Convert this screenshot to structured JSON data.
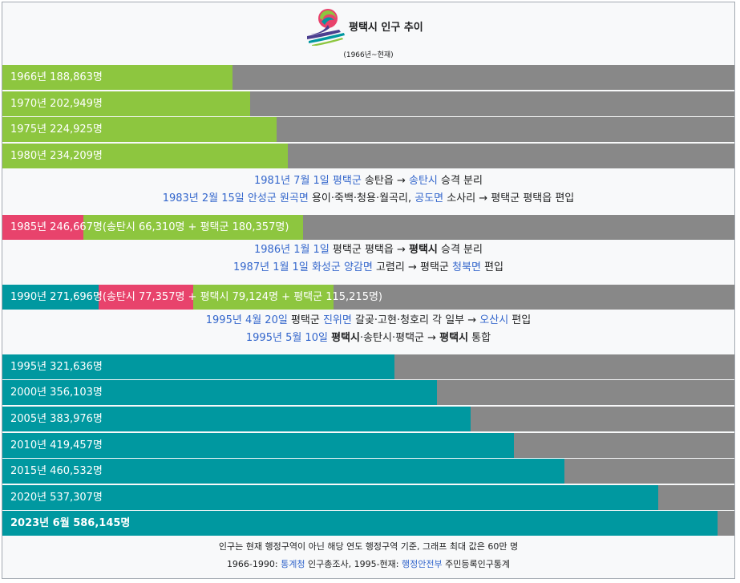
{
  "header": {
    "title": "평택시 인구 추이",
    "subtitle": "(1966년~현재)"
  },
  "colors": {
    "green": "#8dc63f",
    "pink": "#e8436c",
    "teal": "#0098a0",
    "gray": "#888888",
    "link": "#3366cc"
  },
  "chart_data": {
    "type": "bar",
    "orientation": "horizontal",
    "xlim": [
      0,
      600000
    ],
    "rows": [
      {
        "year": 1966,
        "label": "1966년 188,863명",
        "total": 188863,
        "color": "green"
      },
      {
        "year": 1970,
        "label": "1970년 202,949명",
        "total": 202949,
        "color": "green"
      },
      {
        "year": 1975,
        "label": "1975년 224,925명",
        "total": 224925,
        "color": "green"
      },
      {
        "year": 1980,
        "label": "1980년 234,209명",
        "total": 234209,
        "color": "green"
      },
      {
        "year": 1985,
        "label": "1985년 246,667명(송탄시 66,310명 + 평택군 180,357명)",
        "total": 246667,
        "segments": [
          {
            "name": "송탄시",
            "value": 66310,
            "color": "pink"
          },
          {
            "name": "평택군",
            "value": 180357,
            "color": "green"
          }
        ]
      },
      {
        "year": 1990,
        "label": "1990년 271,696명(송탄시 77,357명 + 평택시 79,124명 + 평택군 115,215명)",
        "total": 271696,
        "segments": [
          {
            "name": "평택시",
            "value": 79124,
            "color": "teal"
          },
          {
            "name": "송탄시",
            "value": 77357,
            "color": "pink"
          },
          {
            "name": "평택군",
            "value": 115215,
            "color": "green"
          }
        ]
      },
      {
        "year": 1995,
        "label": "1995년 321,636명",
        "total": 321636,
        "color": "teal"
      },
      {
        "year": 2000,
        "label": "2000년 356,103명",
        "total": 356103,
        "color": "teal"
      },
      {
        "year": 2005,
        "label": "2005년 383,976명",
        "total": 383976,
        "color": "teal"
      },
      {
        "year": 2010,
        "label": "2010년 419,457명",
        "total": 419457,
        "color": "teal"
      },
      {
        "year": 2015,
        "label": "2015년 460,532명",
        "total": 460532,
        "color": "teal"
      },
      {
        "year": 2020,
        "label": "2020년 537,307명",
        "total": 537307,
        "color": "teal"
      },
      {
        "year": 2023,
        "label": "2023년 6월 586,145명",
        "total": 586145,
        "color": "teal",
        "bold": true
      }
    ]
  },
  "notes": {
    "n1a": {
      "date": "1981년 7월 1일",
      "place": "평택군",
      "t1": " 송탄읍 → ",
      "city": "송탄시",
      "t2": " 승격 분리"
    },
    "n1b": {
      "date": "1983년 2월 15일",
      "place": "안성군 원곡면",
      "t1": " 용이·죽백·청용·월곡리, ",
      "place2": "공도면",
      "t2": " 소사리 → 평택군 평택읍 편입"
    },
    "n2a": {
      "date": "1986년 1월 1일",
      "t1": " 평택군 평택읍 → ",
      "city": "평택시",
      "t2": " 승격 분리"
    },
    "n2b": {
      "date": "1987년 1월 1일",
      "place": "화성군 양감면",
      "t1": " 고렴리 → 평택군 ",
      "place2": "청북면",
      "t2": " 편입"
    },
    "n3a": {
      "date": "1995년 4월 20일",
      "t1": " 평택군 ",
      "place": "진위면",
      "t2": " 갈곶·고현·청호리 각 일부 → ",
      "city": "오산시",
      "t3": " 편입"
    },
    "n3b": {
      "date": "1995년 5월 10일",
      "sp": " ",
      "city": "평택시",
      "t1": "·송탄시·평택군 → ",
      "city2": "평택시",
      "t2": " 통합"
    }
  },
  "footer": {
    "line1": "인구는 현재 행정구역이 아닌 해당 연도 행정구역 기준, 그래프 최대 값은 60만 명",
    "line2_pre": "1966-1990: ",
    "line2_src1": "통계청",
    "line2_mid": " 인구총조사, 1995-현재: ",
    "line2_src2": "행정안전부",
    "line2_post": " 주민등록인구통계"
  }
}
